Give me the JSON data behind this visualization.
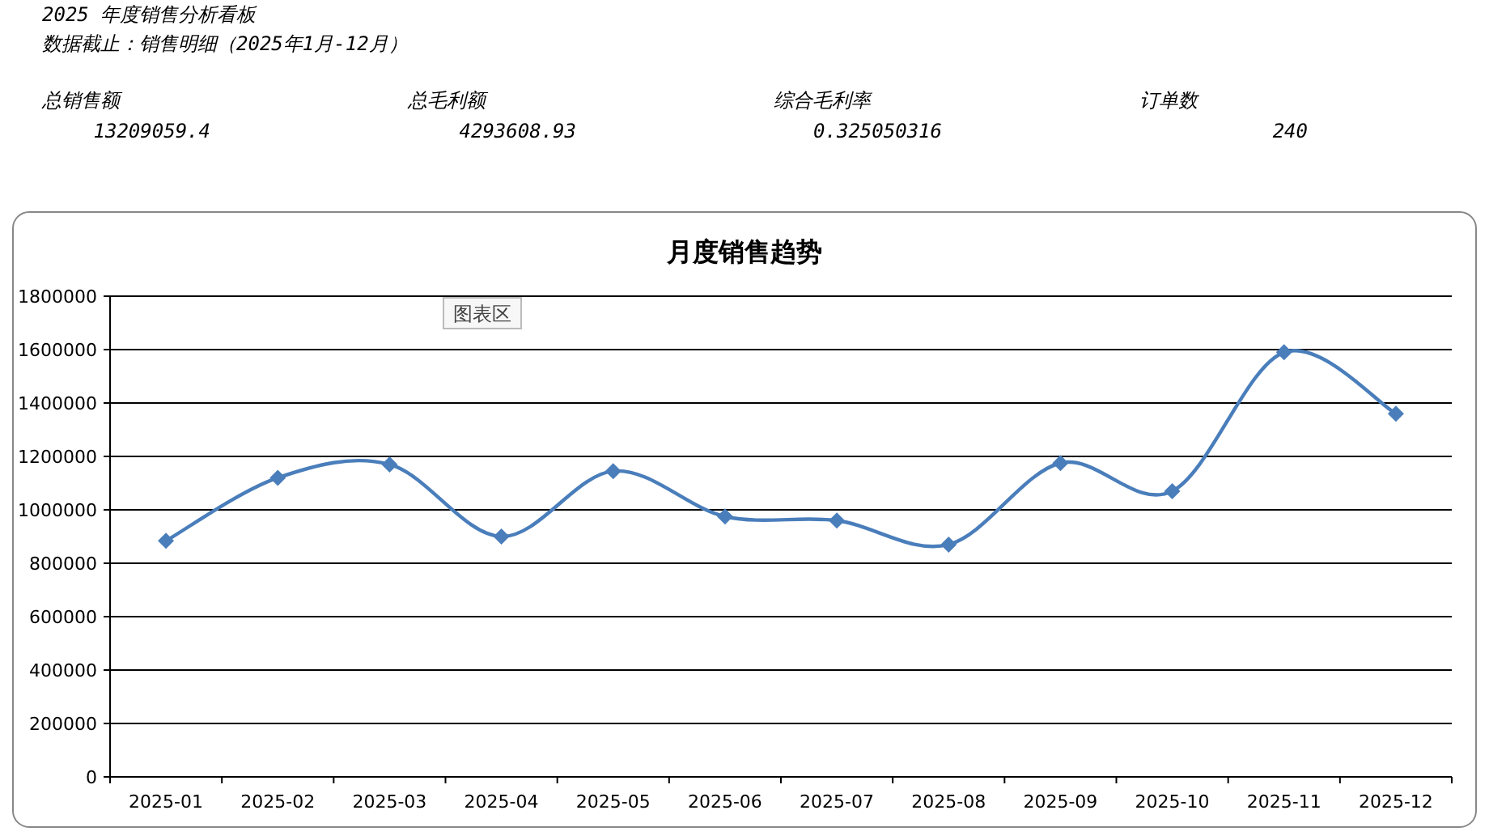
{
  "chart_data": [
    {
      "type": "other",
      "title": "2025 年度销售分析看板",
      "subtitle": "数据截止：销售明细（2025年1月-12月）",
      "annotations": [
        "总销售额",
        "13209059.4",
        "总毛利额",
        "4293608.93",
        "综合毛利率",
        "0.325050316",
        "订单数",
        "240"
      ]
    },
    {
      "type": "line",
      "title": "月度销售趋势",
      "categories": [
        "2025-01",
        "2025-02",
        "2025-03",
        "2025-04",
        "2025-05",
        "2025-06",
        "2025-07",
        "2025-08",
        "2025-09",
        "2025-10",
        "2025-11",
        "2025-12"
      ],
      "series": [
        {
          "color": "#4a7ebb",
          "values": [
            884000,
            1120000,
            1170000,
            900000,
            1145000,
            975000,
            960000,
            870000,
            1175000,
            1070000,
            1590000,
            1360000
          ]
        }
      ],
      "ylim": [
        0,
        1800000
      ],
      "yticks": [
        0,
        200000,
        400000,
        600000,
        800000,
        1000000,
        1200000,
        1400000,
        1600000,
        1800000
      ],
      "grid": "y",
      "marker": "diamond",
      "line_style": "solid",
      "annotations": [
        "图表区"
      ]
    }
  ]
}
